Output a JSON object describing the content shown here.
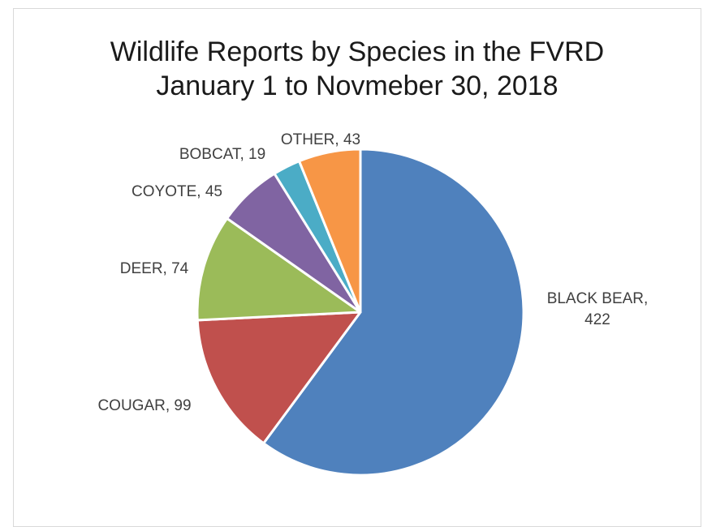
{
  "chart_data": {
    "type": "pie",
    "title": "Wildlife Reports by Species in the FVRD",
    "subtitle": "January 1 to Novmeber 30, 2018",
    "categories": [
      "BLACK BEAR",
      "COUGAR",
      "DEER",
      "COYOTE",
      "BOBCAT",
      "OTHER"
    ],
    "values": [
      422,
      99,
      74,
      45,
      19,
      43
    ],
    "colors": [
      "#4f81bd",
      "#c0504d",
      "#9bbb59",
      "#8064a2",
      "#4bacc6",
      "#f79646"
    ],
    "labels": [
      "BLACK BEAR, 422",
      "COUGAR, 99",
      "DEER, 74",
      "COYOTE, 45",
      "BOBCAT, 19",
      "OTHER, 43"
    ],
    "label_lines": [
      [
        "BLACK BEAR,",
        "422"
      ],
      [
        "COUGAR, 99"
      ],
      [
        "DEER, 74"
      ],
      [
        "COYOTE, 45"
      ],
      [
        "BOBCAT, 19"
      ],
      [
        "OTHER, 43"
      ]
    ],
    "start_angle": "12 o'clock",
    "direction": "clockwise",
    "legend": "none"
  }
}
